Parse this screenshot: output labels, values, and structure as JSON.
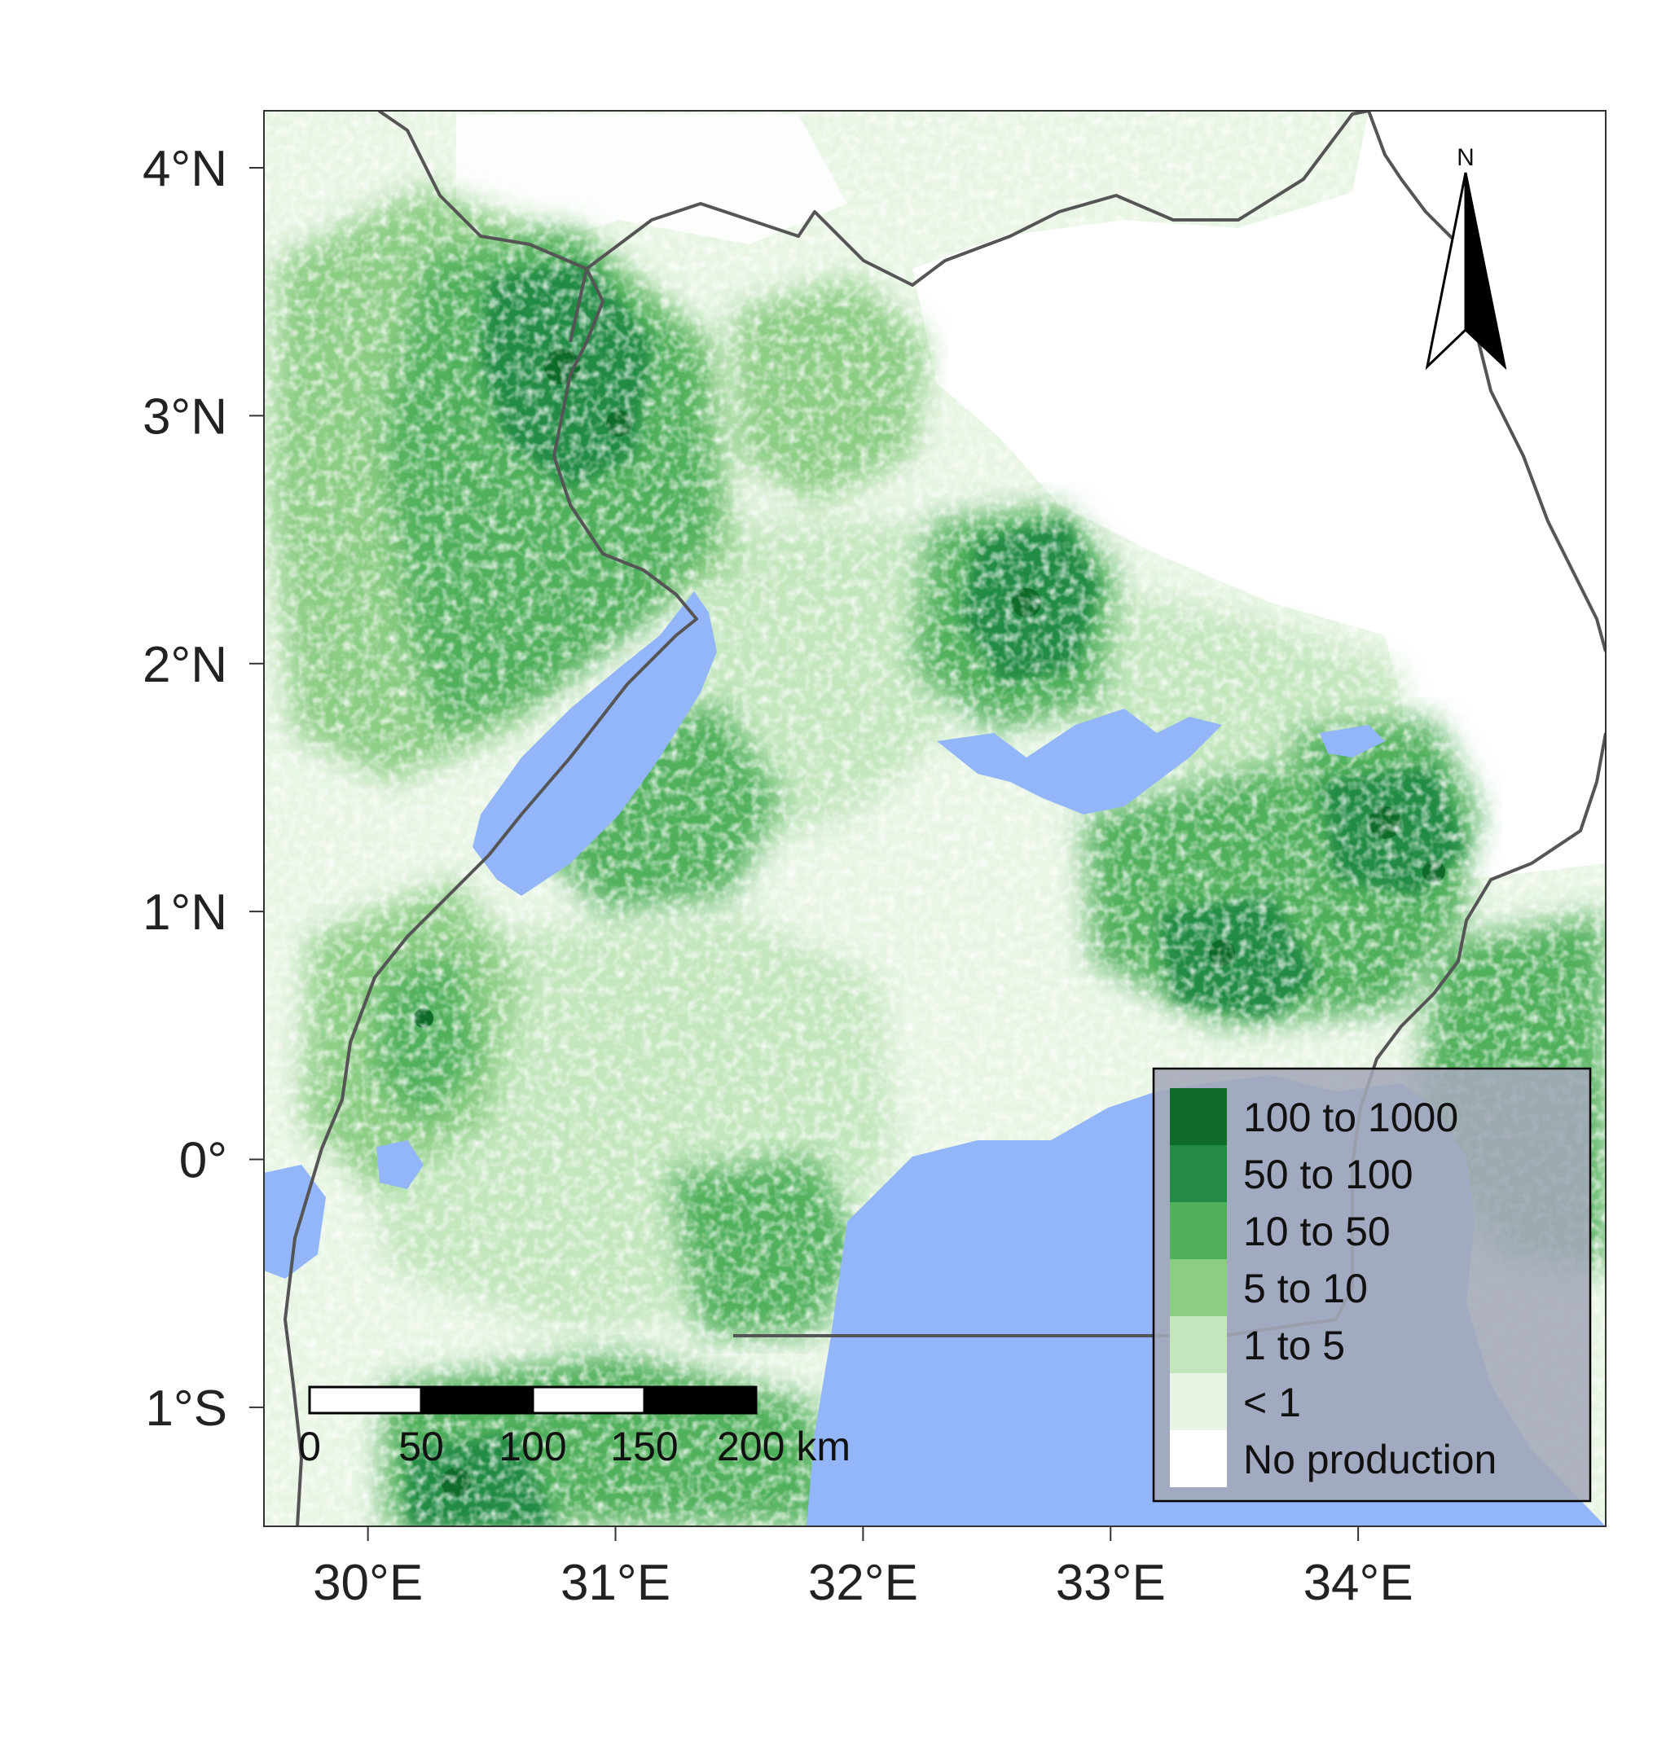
{
  "map": {
    "x_axis": {
      "ticks": [
        {
          "value": 30,
          "label": "30°E"
        },
        {
          "value": 31,
          "label": "31°E"
        },
        {
          "value": 32,
          "label": "32°E"
        },
        {
          "value": 33,
          "label": "33°E"
        },
        {
          "value": 34,
          "label": "34°E"
        }
      ],
      "range": [
        29.58,
        35.0
      ]
    },
    "y_axis": {
      "ticks": [
        {
          "value": 4,
          "label": "4°N"
        },
        {
          "value": 3,
          "label": "3°N"
        },
        {
          "value": 2,
          "label": "2°N"
        },
        {
          "value": 1,
          "label": "1°N"
        },
        {
          "value": 0,
          "label": "0°"
        },
        {
          "value": -1,
          "label": "1°S"
        }
      ],
      "range": [
        -1.48,
        4.23
      ]
    },
    "legend": {
      "placement": "bottom-right",
      "items": [
        {
          "label": "100 to 1000",
          "color": "#0e6b2a"
        },
        {
          "label": "50 to 100",
          "color": "#238b45"
        },
        {
          "label": "10 to 50",
          "color": "#51b05c"
        },
        {
          "label": "5 to 10",
          "color": "#8ccd84"
        },
        {
          "label": "1 to 5",
          "color": "#c3e6bd"
        },
        {
          "label": "< 1",
          "color": "#e8f5e4"
        },
        {
          "label": "No production",
          "color": "#ffffff"
        }
      ]
    },
    "scale_bar": {
      "labels": [
        "0",
        "50",
        "100",
        "150",
        "200 km"
      ]
    },
    "north_arrow": {
      "label": "N"
    },
    "colors": {
      "water": "#93b6fb",
      "border": "#555555",
      "legend_bg": "#a4a9b8"
    }
  }
}
